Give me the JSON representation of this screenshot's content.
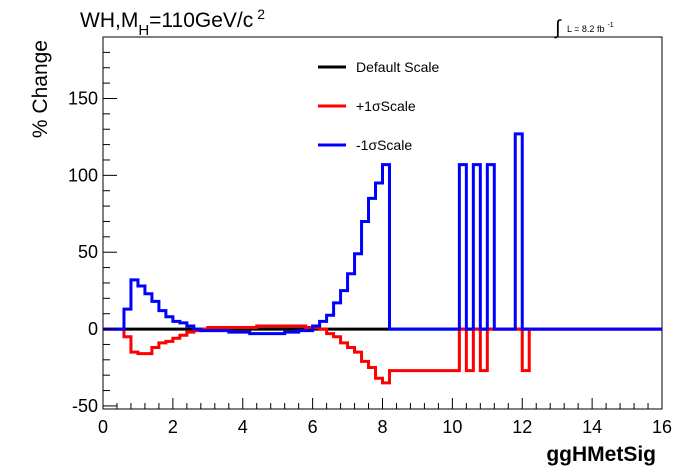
{
  "chart_data": {
    "type": "line",
    "title_main": "WH,M",
    "title_sub": "H",
    "title_rest": "=110GeV/c",
    "title_sup": "2",
    "lumi_main": "L = 8.2 fb",
    "lumi_sup": "-1",
    "xlabel": "ggHMetSig",
    "ylabel": "% Change",
    "xlim": [
      0,
      16
    ],
    "ylim": [
      -52,
      190
    ],
    "xticks": [
      0,
      2,
      4,
      6,
      8,
      10,
      12,
      14,
      16
    ],
    "yticks": [
      -50,
      0,
      50,
      100,
      150
    ],
    "bin_edges": [
      0,
      0.2,
      0.4,
      0.6,
      0.8,
      1.0,
      1.2,
      1.4,
      1.6,
      1.8,
      2.0,
      2.2,
      2.4,
      2.6,
      2.8,
      3.0,
      3.2,
      3.4,
      3.6,
      3.8,
      4.0,
      4.2,
      4.4,
      4.6,
      4.8,
      5.0,
      5.2,
      5.4,
      5.6,
      5.8,
      6.0,
      6.2,
      6.4,
      6.6,
      6.8,
      7.0,
      7.2,
      7.4,
      7.6,
      7.8,
      8.0,
      8.2,
      8.4,
      8.6,
      8.8,
      9.0,
      9.2,
      9.4,
      9.6,
      9.8,
      10.0,
      10.2,
      10.4,
      10.6,
      10.8,
      11.0,
      11.2,
      11.4,
      11.6,
      11.8,
      12.0,
      12.2,
      12.4,
      12.6,
      12.8,
      13.0,
      13.2,
      13.4,
      13.6,
      13.8,
      14.0,
      14.2,
      14.4,
      14.6,
      14.8,
      15.0,
      15.2,
      15.4,
      15.6,
      15.8,
      16.0
    ],
    "series": [
      {
        "name": "Default Scale",
        "color": "#000000",
        "values": [
          0,
          0,
          0,
          0,
          0,
          0,
          0,
          0,
          0,
          0,
          0,
          0,
          0,
          0,
          0,
          0,
          0,
          0,
          0,
          0,
          0,
          0,
          0,
          0,
          0,
          0,
          0,
          0,
          0,
          0,
          0,
          0,
          0,
          0,
          0,
          0,
          0,
          0,
          0,
          0,
          0,
          0,
          0,
          0,
          0,
          0,
          0,
          0,
          0,
          0,
          0,
          0,
          0,
          0,
          0,
          0,
          0,
          0,
          0,
          0,
          0,
          0,
          0,
          0,
          0,
          0,
          0,
          0,
          0,
          0,
          0,
          0,
          0,
          0,
          0,
          0,
          0,
          0,
          0,
          0
        ]
      },
      {
        "name": "+1σScale",
        "color": "#ff0000",
        "values": [
          0,
          0,
          0,
          -5,
          -15,
          -16,
          -16,
          -12,
          -9,
          -8,
          -6,
          -4,
          -2,
          -1,
          0,
          1,
          1,
          1,
          1,
          1,
          1,
          1,
          2,
          2,
          2,
          2,
          2,
          2,
          2,
          1,
          1,
          0,
          -3,
          -5,
          -9,
          -12,
          -15,
          -21,
          -25,
          -32,
          -35,
          -27,
          -27,
          -27,
          -27,
          -27,
          -27,
          -27,
          -27,
          -27,
          -27,
          0,
          -27,
          0,
          -27,
          0,
          0,
          0,
          0,
          0,
          -27,
          0,
          0,
          0,
          0,
          0,
          0,
          0,
          0,
          0,
          0,
          0,
          0,
          0,
          0,
          0,
          0,
          0,
          0,
          0
        ]
      },
      {
        "name": "-1σScale",
        "color": "#0000ff",
        "values": [
          0,
          0,
          0,
          13,
          32,
          28,
          23,
          18,
          12,
          8,
          5,
          4,
          2,
          0,
          -1,
          -1,
          -1,
          -1,
          -2,
          -2,
          -2,
          -3,
          -3,
          -3,
          -3,
          -3,
          -2,
          -2,
          -1,
          -1,
          2,
          5,
          9,
          17,
          25,
          36,
          49,
          70,
          85,
          95,
          107,
          0,
          0,
          0,
          0,
          0,
          0,
          0,
          0,
          0,
          0,
          107,
          0,
          107,
          0,
          107,
          0,
          0,
          0,
          127,
          0,
          0,
          0,
          0,
          0,
          0,
          0,
          0,
          0,
          0,
          0,
          0,
          0,
          0,
          0,
          0,
          0,
          0,
          0,
          0
        ]
      }
    ],
    "legend_position": "top-center",
    "grid": false
  }
}
